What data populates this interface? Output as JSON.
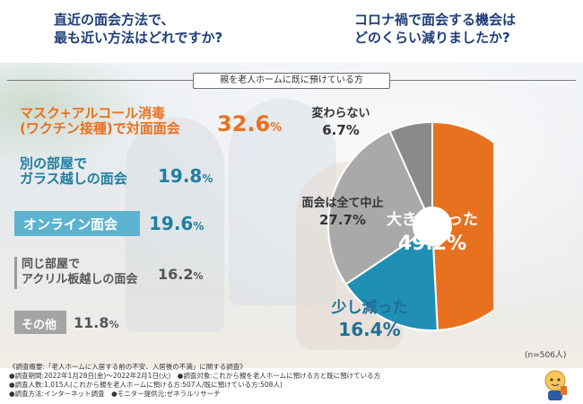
{
  "header": {
    "q1": [
      "直近の面会方法で、",
      "最も近い方法はどれですか?"
    ],
    "q2": [
      "コロナ禍で面会する機会は",
      "どのくらい減りましたか?"
    ]
  },
  "banner": "親を老人ホームに既に預けている方",
  "method_items": [
    {
      "label": [
        "マスク+アルコール消毒",
        "(ワクチン接種)で対面面会"
      ],
      "value": "32.6",
      "unit": "%"
    },
    {
      "label": [
        "別の部屋で",
        "ガラス越しの面会"
      ],
      "value": "19.8",
      "unit": "%"
    },
    {
      "label": [
        "オンライン面会"
      ],
      "value": "19.6",
      "unit": "%"
    },
    {
      "label": [
        "同じ部屋で",
        "アクリル板越しの面会"
      ],
      "value": "16.2",
      "unit": "%"
    },
    {
      "label": [
        "その他"
      ],
      "value": "11.8",
      "unit": "%"
    }
  ],
  "chart_data": {
    "type": "pie",
    "slices": [
      {
        "label": "大きく減った",
        "value": 49.2,
        "color": "#e8711f"
      },
      {
        "label": "少し減った",
        "value": 16.4,
        "color": "#1f8fb5"
      },
      {
        "label": "面会は全て中止",
        "value": 27.7,
        "color": "#a9a9a9"
      },
      {
        "label": "変わらない",
        "value": 6.7,
        "color": "#8a8a8a"
      }
    ],
    "unit": "%"
  },
  "sample_size": "(n=506人)",
  "footnotes": [
    "《調査概要:「老人ホームに入居する前の不安、入居後の不満」に関する調査》",
    "●調査期間:2022年1月28日(金)〜2022年2月1日(火)　●調査対象:これから親を老人ホームに預ける方と既に預けている方",
    "●調査人数:1,015人(これから親を老人ホームに預ける方:507人/既に預けている方:508人)",
    "●調査方法:インターネット調査　●モニター提供元:ゼネラルリサーチ"
  ],
  "colors": {
    "orange": "#e8711f",
    "blue": "#1f8fb5",
    "gray": "#a9a9a9",
    "darkgray": "#8a8a8a",
    "navy": "#1f3f7a"
  }
}
